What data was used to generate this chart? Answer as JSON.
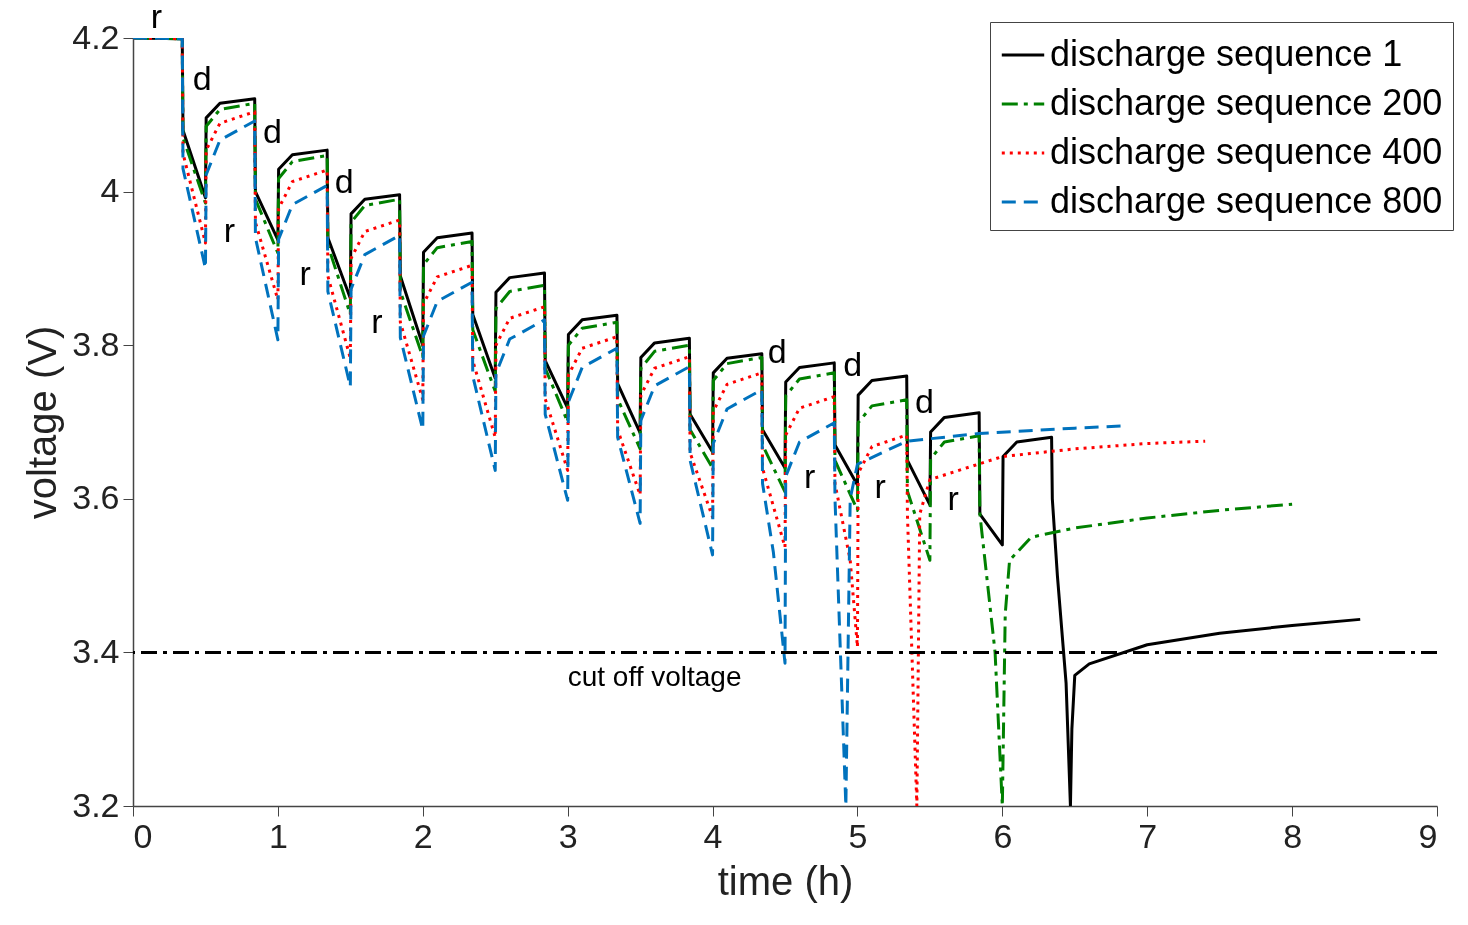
{
  "chart_data": {
    "type": "line",
    "xlabel": "time (h)",
    "ylabel": "voltage (V)",
    "xlim": [
      0,
      9
    ],
    "ylim": [
      3.2,
      4.2
    ],
    "xticks": [
      0,
      1,
      2,
      3,
      4,
      5,
      6,
      7,
      8,
      9
    ],
    "yticks": [
      3.2,
      3.4,
      3.6,
      3.8,
      4,
      4.2
    ],
    "grid": false,
    "legend": "top right",
    "marker": "none",
    "series": [
      {
        "name": "discharge sequence 1",
        "color": "#000000",
        "line_style": "solid",
        "x": [
          0,
          0.34,
          0.345,
          0.5,
          0.505,
          0.6,
          0.84,
          0.845,
          1.0,
          1.005,
          1.1,
          1.34,
          1.345,
          1.5,
          1.505,
          1.6,
          1.84,
          1.845,
          2.0,
          2.005,
          2.1,
          2.34,
          2.345,
          2.5,
          2.505,
          2.6,
          2.84,
          2.845,
          3.0,
          3.005,
          3.1,
          3.34,
          3.345,
          3.5,
          3.505,
          3.6,
          3.84,
          3.845,
          4.0,
          4.005,
          4.1,
          4.34,
          4.345,
          4.5,
          4.505,
          4.6,
          4.84,
          4.845,
          5.0,
          5.005,
          5.1,
          5.34,
          5.345,
          5.5,
          5.505,
          5.6,
          5.84,
          5.845,
          6.0,
          6.005,
          6.1,
          6.34,
          6.345,
          6.38,
          6.44,
          6.47,
          6.48,
          6.5,
          6.6,
          7.0,
          7.5,
          8.0,
          8.47
        ],
        "values": [
          4.2,
          4.199,
          4.08,
          3.992,
          4.096,
          4.115,
          4.121,
          4.0,
          3.937,
          4.029,
          4.048,
          4.054,
          3.94,
          3.861,
          3.971,
          3.99,
          3.996,
          3.89,
          3.8,
          3.921,
          3.94,
          3.946,
          3.84,
          3.757,
          3.869,
          3.888,
          3.894,
          3.78,
          3.718,
          3.814,
          3.833,
          3.839,
          3.75,
          3.686,
          3.784,
          3.803,
          3.809,
          3.71,
          3.661,
          3.764,
          3.783,
          3.789,
          3.69,
          3.64,
          3.752,
          3.771,
          3.777,
          3.67,
          3.618,
          3.735,
          3.754,
          3.76,
          3.65,
          3.592,
          3.687,
          3.706,
          3.712,
          3.58,
          3.54,
          3.655,
          3.674,
          3.68,
          3.6,
          3.5,
          3.36,
          3.2,
          3.3,
          3.37,
          3.385,
          3.41,
          3.425,
          3.435,
          3.443
        ]
      },
      {
        "name": "discharge sequence 200",
        "color": "#008000",
        "line_style": "dashdot",
        "x": [
          0,
          0.34,
          0.345,
          0.5,
          0.505,
          0.6,
          0.84,
          0.845,
          1.0,
          1.005,
          1.1,
          1.34,
          1.345,
          1.5,
          1.505,
          1.6,
          1.84,
          1.845,
          2.0,
          2.005,
          2.1,
          2.34,
          2.345,
          2.5,
          2.505,
          2.6,
          2.84,
          2.845,
          3.0,
          3.005,
          3.1,
          3.34,
          3.345,
          3.5,
          3.505,
          3.6,
          3.84,
          3.845,
          4.0,
          4.005,
          4.1,
          4.34,
          4.345,
          4.5,
          4.505,
          4.6,
          4.84,
          4.845,
          5.0,
          5.005,
          5.1,
          5.34,
          5.345,
          5.5,
          5.505,
          5.6,
          5.84,
          5.845,
          5.95,
          6.0,
          6.02,
          6.05,
          6.2,
          6.5,
          7.0,
          7.5,
          8.0
        ],
        "values": [
          4.2,
          4.199,
          4.07,
          3.985,
          4.085,
          4.107,
          4.115,
          3.99,
          3.92,
          4.017,
          4.039,
          4.047,
          3.93,
          3.84,
          3.96,
          3.982,
          3.99,
          3.87,
          3.785,
          3.905,
          3.927,
          3.935,
          3.82,
          3.74,
          3.848,
          3.87,
          3.878,
          3.77,
          3.7,
          3.8,
          3.822,
          3.83,
          3.73,
          3.665,
          3.77,
          3.792,
          3.8,
          3.69,
          3.64,
          3.754,
          3.776,
          3.784,
          3.67,
          3.609,
          3.734,
          3.756,
          3.764,
          3.65,
          3.585,
          3.699,
          3.721,
          3.729,
          3.61,
          3.52,
          3.652,
          3.674,
          3.682,
          3.58,
          3.4,
          3.2,
          3.45,
          3.52,
          3.55,
          3.562,
          3.575,
          3.585,
          3.593
        ]
      },
      {
        "name": "discharge sequence 400",
        "color": "#ff0000",
        "line_style": "dotted",
        "x": [
          0,
          0.34,
          0.345,
          0.5,
          0.505,
          0.6,
          0.84,
          0.845,
          1.0,
          1.005,
          1.1,
          1.34,
          1.345,
          1.5,
          1.505,
          1.6,
          1.84,
          1.845,
          2.0,
          2.005,
          2.1,
          2.34,
          2.345,
          2.5,
          2.505,
          2.6,
          2.84,
          2.845,
          3.0,
          3.005,
          3.1,
          3.34,
          3.345,
          3.5,
          3.505,
          3.6,
          3.84,
          3.845,
          4.0,
          4.005,
          4.1,
          4.34,
          4.345,
          4.5,
          4.505,
          4.6,
          4.84,
          4.845,
          4.95,
          5.0,
          5.005,
          5.1,
          5.34,
          5.345,
          5.41,
          5.43,
          5.5,
          6.0,
          6.5,
          7.0,
          7.4
        ],
        "values": [
          4.2,
          4.199,
          4.05,
          3.933,
          4.054,
          4.089,
          4.104,
          3.96,
          3.859,
          3.978,
          4.013,
          4.028,
          3.89,
          3.783,
          3.913,
          3.948,
          3.963,
          3.83,
          3.729,
          3.854,
          3.889,
          3.904,
          3.78,
          3.68,
          3.8,
          3.835,
          3.85,
          3.73,
          3.637,
          3.761,
          3.796,
          3.811,
          3.69,
          3.605,
          3.735,
          3.77,
          3.785,
          3.66,
          3.576,
          3.714,
          3.749,
          3.764,
          3.64,
          3.537,
          3.683,
          3.718,
          3.733,
          3.62,
          3.52,
          3.407,
          3.633,
          3.668,
          3.683,
          3.58,
          3.2,
          3.58,
          3.625,
          3.655,
          3.665,
          3.672,
          3.675
        ]
      },
      {
        "name": "discharge sequence 800",
        "color": "#0072bd",
        "line_style": "dashed",
        "x": [
          0,
          0.34,
          0.345,
          0.5,
          0.505,
          0.6,
          0.84,
          0.845,
          1.0,
          1.005,
          1.1,
          1.34,
          1.345,
          1.5,
          1.505,
          1.6,
          1.84,
          1.845,
          2.0,
          2.005,
          2.1,
          2.34,
          2.345,
          2.5,
          2.505,
          2.6,
          2.84,
          2.845,
          3.0,
          3.005,
          3.1,
          3.34,
          3.345,
          3.5,
          3.505,
          3.6,
          3.84,
          3.845,
          4.0,
          4.005,
          4.1,
          4.34,
          4.345,
          4.42,
          4.5,
          4.505,
          4.6,
          4.84,
          4.845,
          4.92,
          4.95,
          5.0,
          5.34,
          5.84,
          6.5,
          6.85
        ],
        "values": [
          4.2,
          4.199,
          4.03,
          3.9,
          4.022,
          4.067,
          4.092,
          3.94,
          3.807,
          3.938,
          3.983,
          4.008,
          3.87,
          3.746,
          3.873,
          3.918,
          3.943,
          3.81,
          3.69,
          3.812,
          3.857,
          3.882,
          3.76,
          3.637,
          3.763,
          3.808,
          3.833,
          3.71,
          3.598,
          3.726,
          3.771,
          3.796,
          3.68,
          3.568,
          3.702,
          3.747,
          3.772,
          3.65,
          3.527,
          3.672,
          3.717,
          3.742,
          3.62,
          3.53,
          3.386,
          3.629,
          3.674,
          3.699,
          3.6,
          3.2,
          3.6,
          3.645,
          3.675,
          3.685,
          3.692,
          3.695
        ]
      }
    ],
    "ref_lines": [
      {
        "axis": "y",
        "value": 3.4,
        "label": "cut off voltage",
        "color": "#000000",
        "line_style": "dashdot"
      }
    ],
    "annotations": [
      "r",
      "d",
      "d",
      "d",
      "r",
      "r",
      "r",
      "d",
      "d",
      "d",
      "r",
      "r",
      "r"
    ]
  }
}
